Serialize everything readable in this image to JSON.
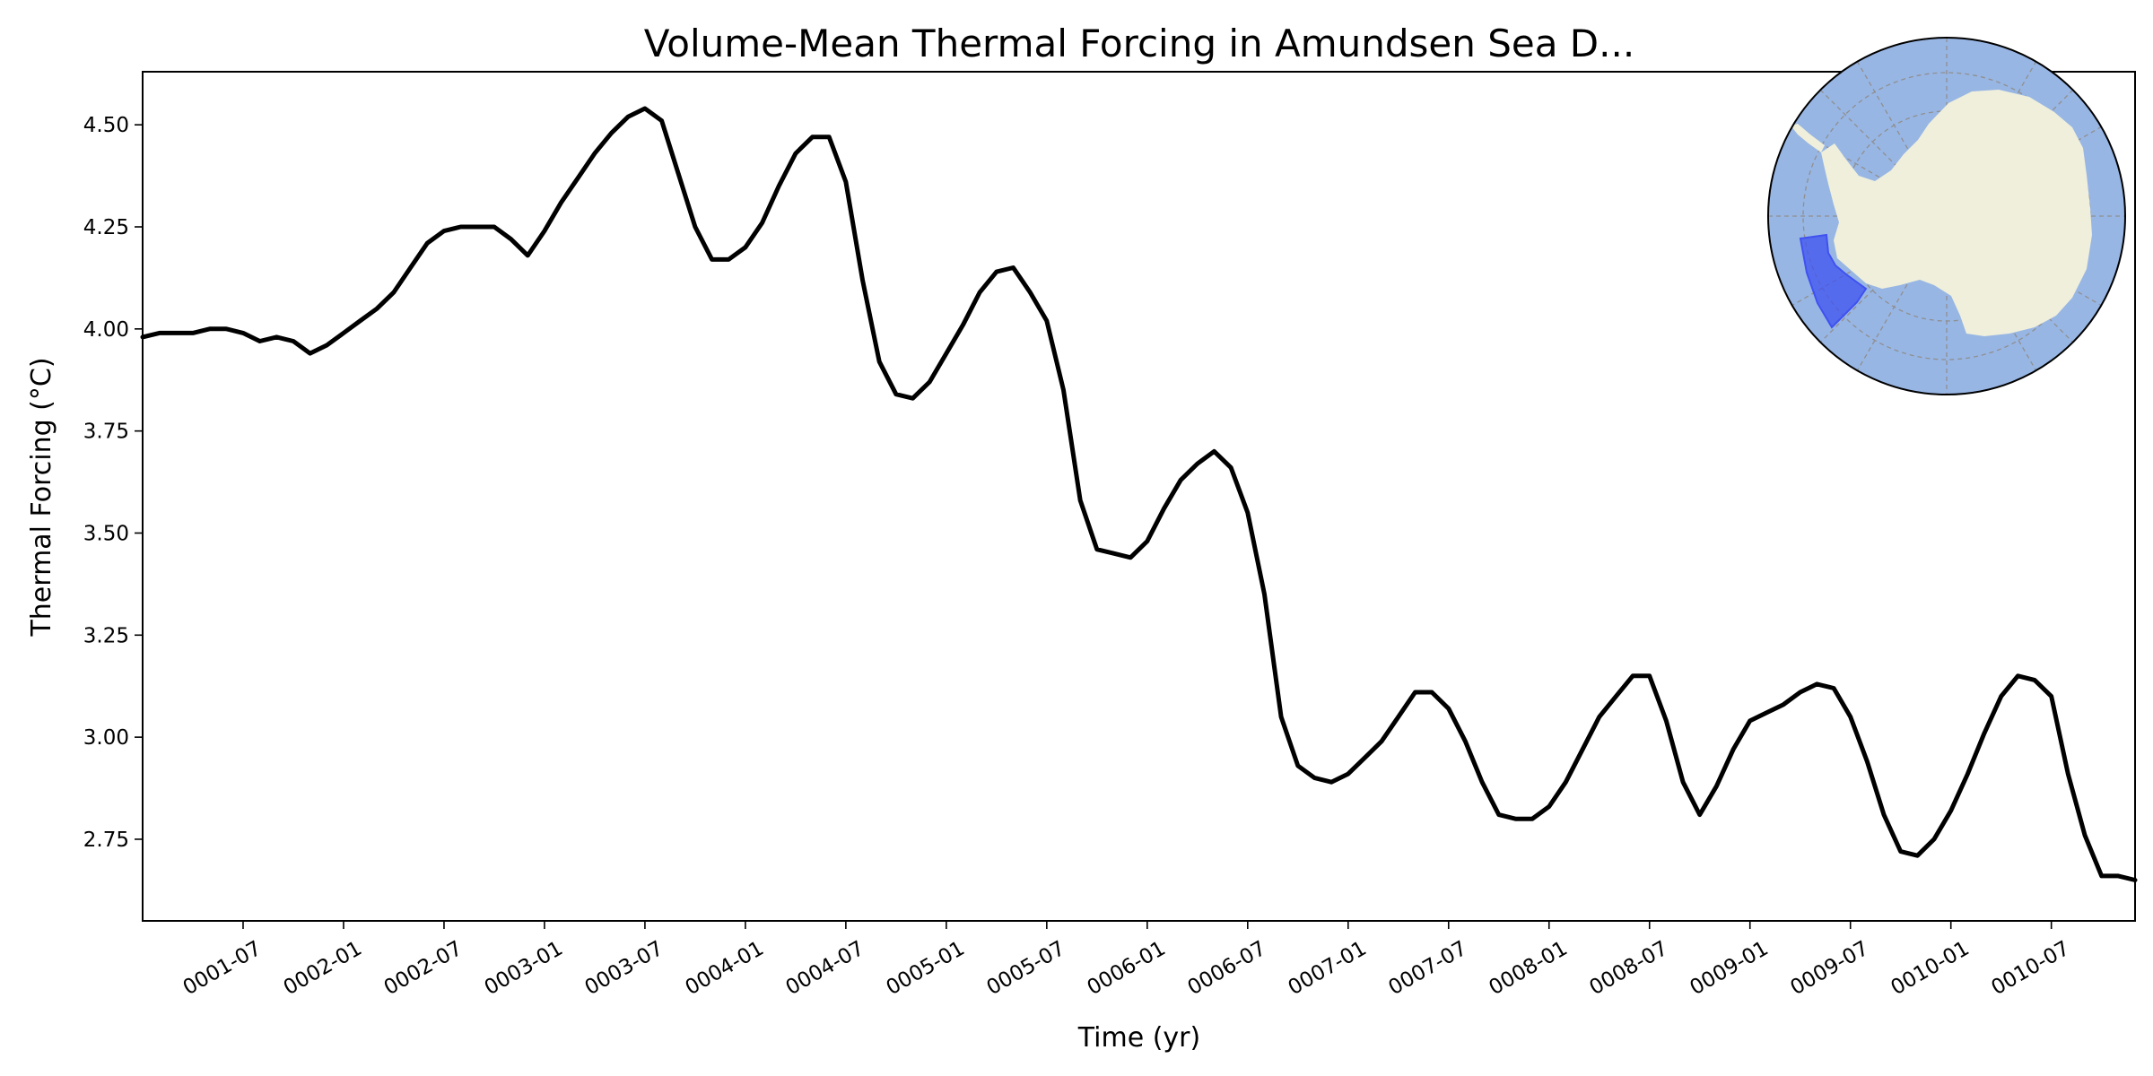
{
  "chart_data": {
    "type": "line",
    "title": "Volume-Mean Thermal Forcing in Amundsen Sea D...",
    "xlabel": "Time (yr)",
    "ylabel": "Thermal Forcing (°C)",
    "ylim": [
      2.55,
      4.63
    ],
    "yticks": [
      "2.75",
      "3.00",
      "3.25",
      "3.50",
      "3.75",
      "4.00",
      "4.25",
      "4.50"
    ],
    "xticks": [
      "0001-07",
      "0002-01",
      "0002-07",
      "0003-01",
      "0003-07",
      "0004-01",
      "0004-07",
      "0005-01",
      "0005-07",
      "0006-01",
      "0006-07",
      "0007-01",
      "0007-07",
      "0008-01",
      "0008-07",
      "0009-01",
      "0009-07",
      "0010-01",
      "0010-07"
    ],
    "grid": false,
    "inset": "map-of-antarctica-with-amundsen-sea-region-highlighted",
    "colors": {
      "line": "#000000",
      "ocean": "#98b6e4",
      "land": "#efefdb",
      "region": "#3f51f0"
    },
    "series": [
      {
        "x_start": "0001-01",
        "x_step": "1 month",
        "values": [
          3.98,
          3.99,
          3.99,
          3.99,
          4.0,
          4.0,
          3.99,
          3.97,
          3.98,
          3.97,
          3.94,
          3.96,
          3.99,
          4.02,
          4.05,
          4.09,
          4.15,
          4.21,
          4.24,
          4.25,
          4.25,
          4.25,
          4.22,
          4.18,
          4.24,
          4.31,
          4.37,
          4.43,
          4.48,
          4.52,
          4.54,
          4.51,
          4.38,
          4.25,
          4.17,
          4.17,
          4.2,
          4.26,
          4.35,
          4.43,
          4.47,
          4.47,
          4.36,
          4.12,
          3.92,
          3.84,
          3.83,
          3.87,
          3.94,
          4.01,
          4.09,
          4.14,
          4.15,
          4.09,
          4.02,
          3.85,
          3.58,
          3.46,
          3.45,
          3.44,
          3.48,
          3.56,
          3.63,
          3.67,
          3.7,
          3.66,
          3.55,
          3.35,
          3.05,
          2.93,
          2.9,
          2.89,
          2.91,
          2.95,
          2.99,
          3.05,
          3.11,
          3.11,
          3.07,
          2.99,
          2.89,
          2.81,
          2.8,
          2.8,
          2.83,
          2.89,
          2.97,
          3.05,
          3.1,
          3.15,
          3.15,
          3.04,
          2.89,
          2.81,
          2.88,
          2.97,
          3.04,
          3.06,
          3.08,
          3.11,
          3.13,
          3.12,
          3.05,
          2.94,
          2.81,
          2.72,
          2.71,
          2.75,
          2.82,
          2.91,
          3.01,
          3.1,
          3.15,
          3.14,
          3.1,
          2.91,
          2.76,
          2.66,
          2.66,
          2.65
        ]
      }
    ]
  }
}
